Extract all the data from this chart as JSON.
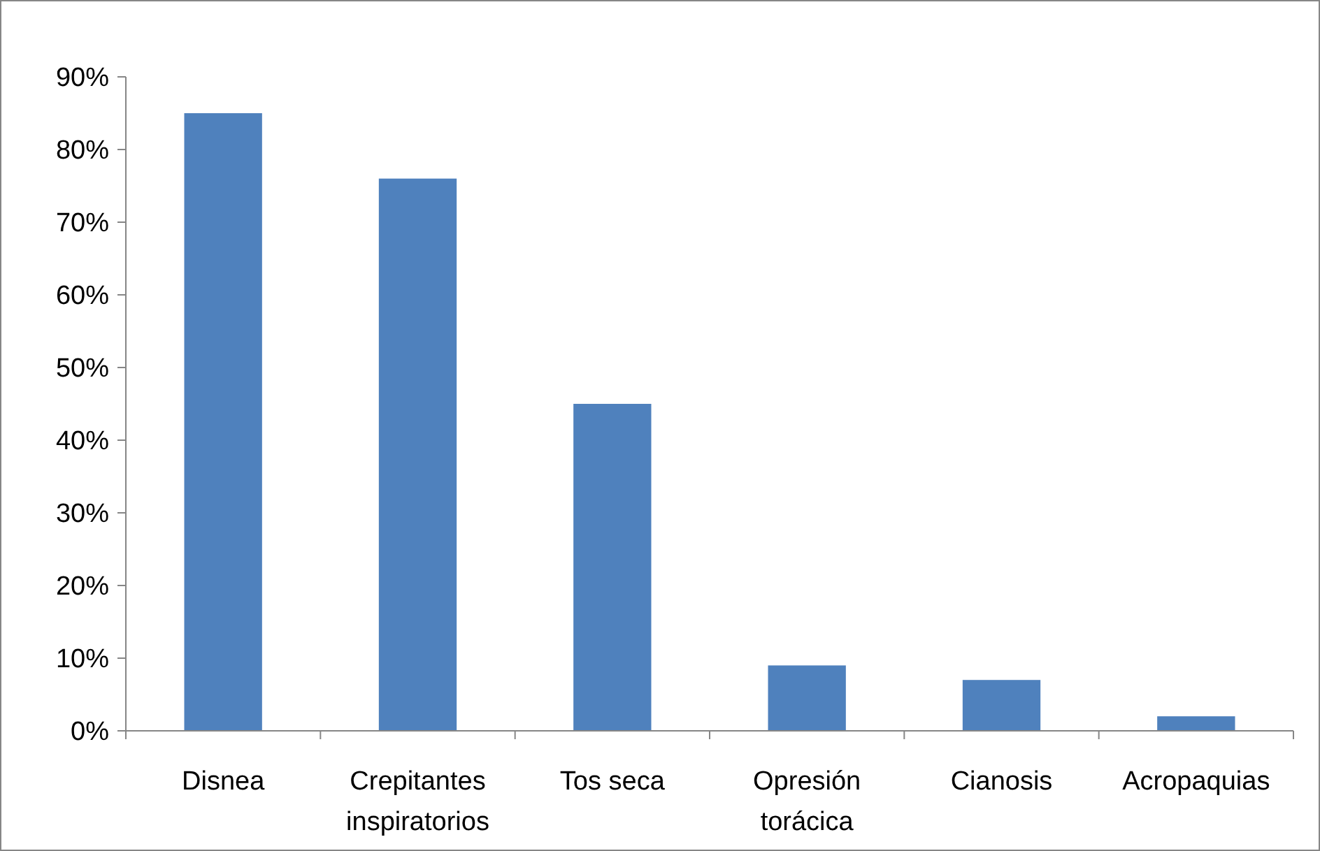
{
  "chart_data": {
    "type": "bar",
    "categories": [
      "Disnea",
      "Crepitantes inspiratorios",
      "Tos seca",
      "Opresión torácica",
      "Cianosis",
      "Acropaquias"
    ],
    "values": [
      0.85,
      0.76,
      0.45,
      0.09,
      0.07,
      0.02
    ],
    "color": "#4f81bd",
    "ylim": [
      0,
      0.9
    ],
    "yticks": [
      {
        "value": 0,
        "label": "0%"
      },
      {
        "value": 0.1,
        "label": "10%"
      },
      {
        "value": 0.2,
        "label": "20%"
      },
      {
        "value": 0.3,
        "label": "30%"
      },
      {
        "value": 0.4,
        "label": "40%"
      },
      {
        "value": 0.5,
        "label": "50%"
      },
      {
        "value": 0.6,
        "label": "60%"
      },
      {
        "value": 0.7,
        "label": "70%"
      },
      {
        "value": 0.8,
        "label": "80%"
      },
      {
        "value": 0.9,
        "label": "90%"
      }
    ],
    "grid": false
  }
}
